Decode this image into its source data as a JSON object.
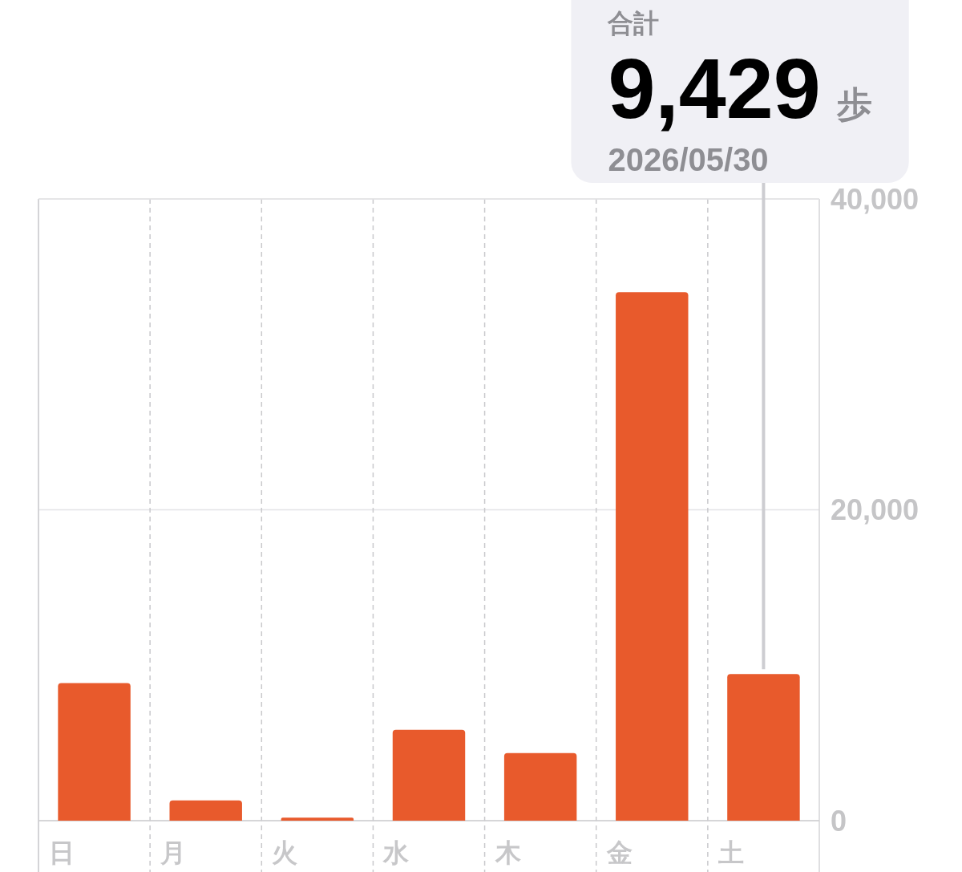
{
  "chart_data": {
    "type": "bar",
    "categories": [
      "日",
      "月",
      "火",
      "水",
      "木",
      "金",
      "土"
    ],
    "values": [
      8850,
      1300,
      200,
      5850,
      4350,
      34000,
      9429
    ],
    "color": "#e85a2c",
    "ylim": [
      0,
      40000
    ],
    "yticks": [
      0,
      {
        "value": 20000,
        "label": "20,000"
      },
      {
        "value": 40000,
        "label": "40,000"
      }
    ],
    "grid": true,
    "value_labels": [
      null,
      null,
      null,
      null,
      null,
      null,
      "9,429"
    ],
    "annotations": [
      "合計",
      "歩",
      "2026/05/30"
    ]
  }
}
